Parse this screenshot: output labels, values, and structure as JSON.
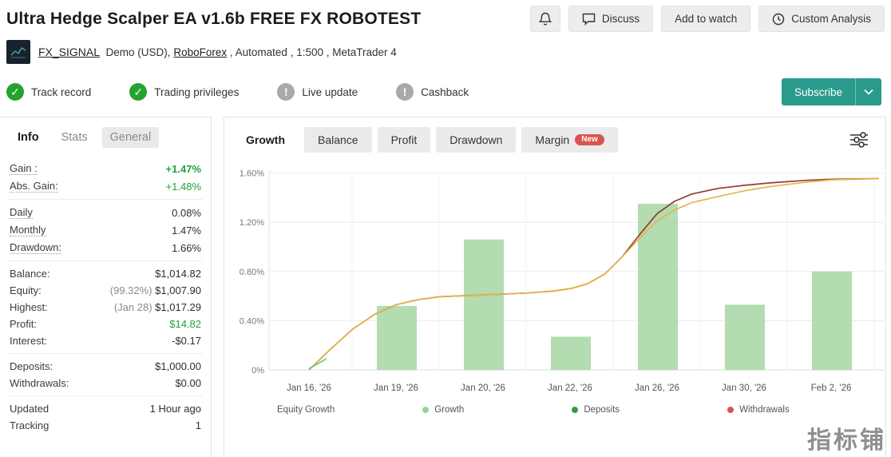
{
  "header": {
    "title": "Ultra Hedge Scalper EA v1.6b FREE FX ROBOTEST",
    "discuss_label": "Discuss",
    "add_to_watch_label": "Add to watch",
    "custom_analysis_label": "Custom Analysis"
  },
  "account": {
    "name": "FX_SIGNAL",
    "mid_text": "Demo (USD),",
    "broker": "RoboForex",
    "tail_text": ", Automated , 1:500 , MetaTrader 4"
  },
  "badges": [
    {
      "label": "Track record",
      "status": "ok"
    },
    {
      "label": "Trading privileges",
      "status": "ok"
    },
    {
      "label": "Live update",
      "status": "info"
    },
    {
      "label": "Cashback",
      "status": "info"
    }
  ],
  "subscribe": {
    "label": "Subscribe"
  },
  "info_panel": {
    "tabs": [
      {
        "label": "Info",
        "active": true,
        "boxed": false
      },
      {
        "label": "Stats",
        "active": false,
        "boxed": false
      },
      {
        "label": "General",
        "active": false,
        "boxed": true
      }
    ],
    "groups": [
      [
        {
          "label": "Gain :",
          "value": "+1.47%",
          "dotted": true,
          "green": true,
          "bold": true
        },
        {
          "label": "Abs. Gain:",
          "value": "+1.48%",
          "dotted": true,
          "green": true
        }
      ],
      [
        {
          "label": "Daily",
          "value": "0.08%",
          "dotted": true
        },
        {
          "label": "Monthly",
          "value": "1.47%",
          "dotted": true
        },
        {
          "label": "Drawdown:",
          "value": "1.66%",
          "dotted": true
        }
      ],
      [
        {
          "label": "Balance:",
          "value": "$1,014.82"
        },
        {
          "label": "Equity:",
          "muted": "(99.32%)",
          "value": "$1,007.90"
        },
        {
          "label": "Highest:",
          "muted": "(Jan 28)",
          "value": "$1,017.29"
        },
        {
          "label": "Profit:",
          "value": "$14.82",
          "green": true
        },
        {
          "label": "Interest:",
          "value": "-$0.17"
        }
      ],
      [
        {
          "label": "Deposits:",
          "value": "$1,000.00"
        },
        {
          "label": "Withdrawals:",
          "value": "$0.00"
        }
      ],
      [
        {
          "label": "Updated",
          "value": "1 Hour ago"
        },
        {
          "label": "Tracking",
          "value": "1"
        }
      ]
    ]
  },
  "chart_panel": {
    "tabs": [
      {
        "label": "Growth",
        "active": true
      },
      {
        "label": "Balance",
        "active": false
      },
      {
        "label": "Profit",
        "active": false
      },
      {
        "label": "Drawdown",
        "active": false
      },
      {
        "label": "Margin",
        "active": false,
        "badge": "New"
      }
    ]
  },
  "chart_data": {
    "type": "line+bar",
    "title": "Growth",
    "categories": [
      "Jan 16, '26",
      "Jan 19, '26",
      "Jan 20, '26",
      "Jan 22, '26",
      "Jan 26, '26",
      "Jan 30, '26",
      "Feb 2, '26"
    ],
    "yticks": [
      {
        "value": 0,
        "label": "0%"
      },
      {
        "value": 0.4,
        "label": "0.40%"
      },
      {
        "value": 0.8,
        "label": "0.80%"
      },
      {
        "value": 1.2,
        "label": "1.20%"
      },
      {
        "value": 1.6,
        "label": "1.60%"
      }
    ],
    "ylim": [
      0,
      1.7
    ],
    "grid": true,
    "bar_series": {
      "name": "Growth bars",
      "color": "#abd8a8",
      "values": [
        null,
        0.52,
        1.06,
        0.27,
        1.35,
        0.53,
        0.8
      ]
    },
    "line_series": [
      {
        "name": "Growth",
        "color": "#9b3a30",
        "points": [
          [
            0,
            0
          ],
          [
            0.25,
            0.17
          ],
          [
            0.5,
            0.33
          ],
          [
            0.75,
            0.45
          ],
          [
            1,
            0.53
          ],
          [
            1.25,
            0.57
          ],
          [
            1.5,
            0.595
          ],
          [
            2,
            0.61
          ],
          [
            2.5,
            0.625
          ],
          [
            2.8,
            0.64
          ],
          [
            3,
            0.66
          ],
          [
            3.2,
            0.7
          ],
          [
            3.4,
            0.78
          ],
          [
            3.6,
            0.92
          ],
          [
            3.8,
            1.1
          ],
          [
            4,
            1.27
          ],
          [
            4.2,
            1.37
          ],
          [
            4.4,
            1.43
          ],
          [
            4.7,
            1.475
          ],
          [
            5,
            1.5
          ],
          [
            5.3,
            1.52
          ],
          [
            5.7,
            1.54
          ],
          [
            6,
            1.55
          ],
          [
            6.55,
            1.555
          ]
        ]
      },
      {
        "name": "Equity Growth",
        "color": "#e6b54a",
        "points": [
          [
            0,
            0
          ],
          [
            0.25,
            0.17
          ],
          [
            0.5,
            0.33
          ],
          [
            0.75,
            0.45
          ],
          [
            1,
            0.53
          ],
          [
            1.25,
            0.57
          ],
          [
            1.5,
            0.595
          ],
          [
            2,
            0.61
          ],
          [
            2.5,
            0.625
          ],
          [
            2.8,
            0.64
          ],
          [
            3,
            0.66
          ],
          [
            3.2,
            0.7
          ],
          [
            3.4,
            0.78
          ],
          [
            3.6,
            0.92
          ],
          [
            3.8,
            1.07
          ],
          [
            4,
            1.21
          ],
          [
            4.2,
            1.3
          ],
          [
            4.4,
            1.36
          ],
          [
            4.7,
            1.41
          ],
          [
            5,
            1.455
          ],
          [
            5.3,
            1.49
          ],
          [
            5.7,
            1.525
          ],
          [
            6,
            1.545
          ],
          [
            6.55,
            1.555
          ]
        ]
      },
      {
        "name": "Growth start",
        "color": "#7bc47f",
        "points": [
          [
            0,
            0.01
          ],
          [
            0.2,
            0.09
          ]
        ]
      }
    ],
    "legend": [
      {
        "label": "Equity Growth",
        "color": null
      },
      {
        "label": "Growth",
        "color": "#8fd694"
      },
      {
        "label": "Deposits",
        "color": "#2e9e42"
      },
      {
        "label": "Withdrawals",
        "color": "#d9534f"
      }
    ]
  },
  "watermark": "指标铺"
}
